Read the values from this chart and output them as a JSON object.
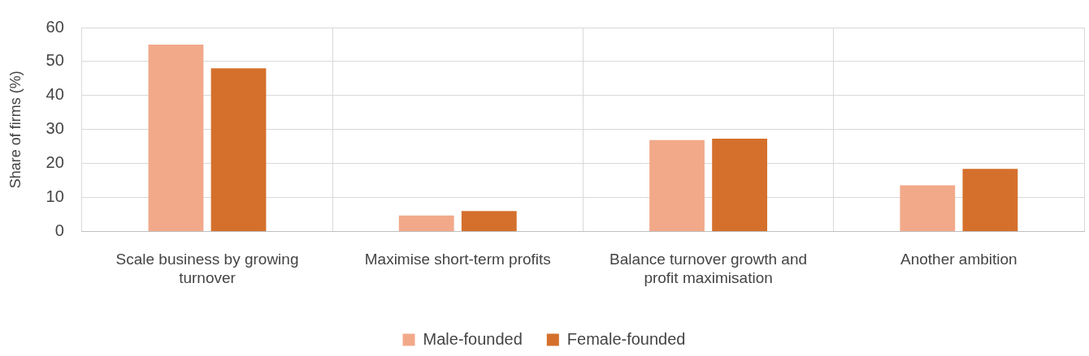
{
  "chart_data": {
    "type": "bar",
    "ylabel": "Share of firms (%)",
    "categories": [
      "Scale business by growing turnover",
      "Maximise short-term profits",
      "Balance turnover growth and profit maximisation",
      "Another ambition"
    ],
    "series": [
      {
        "name": "Male-founded",
        "color": "#f2a98a",
        "values": [
          55,
          4.7,
          26.9,
          13.6
        ]
      },
      {
        "name": "Female-founded",
        "color": "#d4702c",
        "values": [
          48,
          6,
          27.3,
          18.4
        ]
      }
    ],
    "ylim": [
      0,
      60
    ],
    "yticks": [
      0,
      10,
      20,
      30,
      40,
      50,
      60
    ],
    "grid": true,
    "legend": "bottom"
  }
}
